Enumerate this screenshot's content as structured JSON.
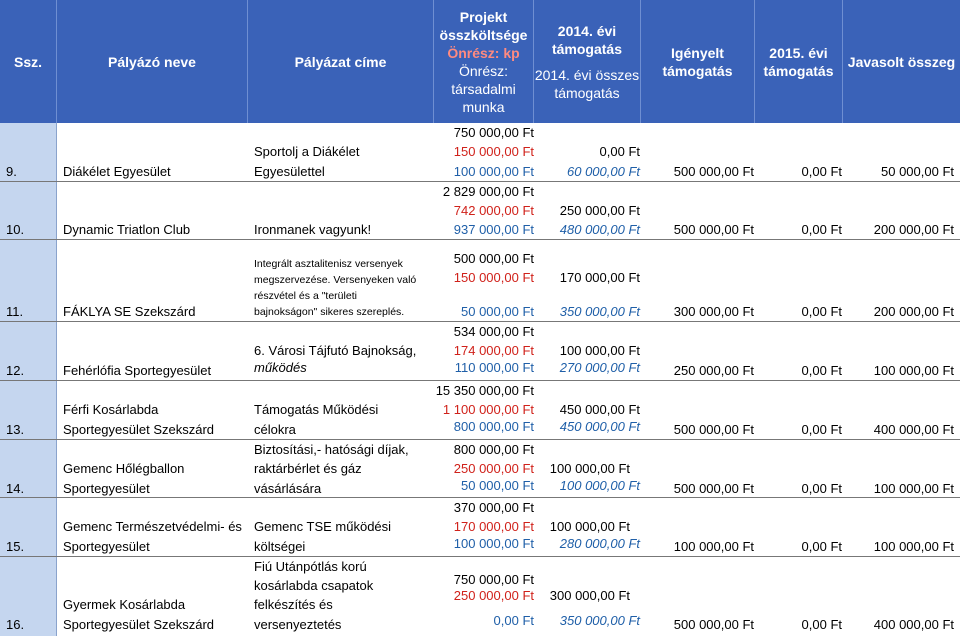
{
  "header": {
    "ssz": "Ssz.",
    "palyazo": "Pályázó neve",
    "cim": "Pályázat címe",
    "projekt_1": "Projekt",
    "projekt_2": "összköltsége",
    "projekt_onresz_kp": "Önrész: kp",
    "projekt_onresz_1": "Önrész:",
    "projekt_onresz_2": "társadalmi",
    "projekt_onresz_3": "munka",
    "t2014_1": "2014. évi",
    "t2014_2": "támogatás",
    "t2014_osszes_1": "2014. évi összes",
    "t2014_osszes_2": "támogatás",
    "igenyelt_1": "Igényelt",
    "igenyelt_2": "támogatás",
    "t2015_1": "2015. évi",
    "t2015_2": "támogatás",
    "javasolt": "Javasolt összeg"
  },
  "rows": [
    {
      "num": "9.",
      "name": [
        "Diákélet Egyesület"
      ],
      "title": [
        "Sportolj a Diákélet",
        "Egyesülettel"
      ],
      "projekt": "750 000,00 Ft",
      "onresz_kp": "150 000,00 Ft",
      "onresz_tm": "100 000,00 Ft",
      "t2014": "0,00 Ft",
      "t2014_ossz": "60 000,00 Ft",
      "igenyelt": "500 000,00 Ft",
      "t2015": "0,00 Ft",
      "javasolt": "50 000,00 Ft"
    },
    {
      "num": "10.",
      "name": [
        "Dynamic Triatlon Club"
      ],
      "title": [
        "Ironmanek vagyunk!"
      ],
      "projekt": "2 829 000,00 Ft",
      "onresz_kp": "742 000,00 Ft",
      "onresz_tm": "937 000,00 Ft",
      "t2014": "250 000,00 Ft",
      "t2014_ossz": "480 000,00 Ft",
      "igenyelt": "500 000,00 Ft",
      "t2015": "0,00 Ft",
      "javasolt": "200 000,00 Ft"
    },
    {
      "num": "11.",
      "name": [
        "FÁKLYA SE Szekszárd"
      ],
      "title": [
        "Integrált asztalitenisz versenyek",
        "megszervezése. Versenyeken való",
        "részvétel és a \"területi",
        "bajnokságon\" sikeres szereplés."
      ],
      "projekt": "500 000,00 Ft",
      "onresz_kp": "150 000,00 Ft",
      "onresz_tm": "50 000,00 Ft",
      "t2014": "170 000,00 Ft",
      "t2014_ossz": "350 000,00 Ft",
      "igenyelt": "300 000,00 Ft",
      "t2015": "0,00 Ft",
      "javasolt": "200 000,00 Ft"
    },
    {
      "num": "12.",
      "name": [
        "Fehérlófia Sportegyesület"
      ],
      "title": [
        "6. Városi Tájfutó Bajnokság,",
        "működés"
      ],
      "projekt": "534 000,00 Ft",
      "onresz_kp": "174 000,00 Ft",
      "onresz_tm": "110 000,00 Ft",
      "t2014": "100 000,00 Ft",
      "t2014_ossz": "270 000,00 Ft",
      "igenyelt": "250 000,00 Ft",
      "t2015": "0,00 Ft",
      "javasolt": "100 000,00 Ft"
    },
    {
      "num": "13.",
      "name": [
        "Férfi Kosárlabda",
        "Sportegyesület Szekszárd"
      ],
      "title": [
        "Támogatás Működési",
        "célokra"
      ],
      "projekt": "15 350 000,00 Ft",
      "onresz_kp": "1 100 000,00 Ft",
      "onresz_tm": "800 000,00 Ft",
      "t2014": "450 000,00 Ft",
      "t2014_ossz": "450 000,00 Ft",
      "igenyelt": "500 000,00 Ft",
      "t2015": "0,00 Ft",
      "javasolt": "400 000,00 Ft"
    },
    {
      "num": "14.",
      "name": [
        "Gemenc Hőlégballon",
        "Sportegyesület"
      ],
      "title": [
        "Biztosítási,- hatósági díjak,",
        "raktárbérlet és gáz",
        "vásárlására"
      ],
      "projekt": "800 000,00 Ft",
      "onresz_kp": "250 000,00 Ft",
      "onresz_tm": "50 000,00 Ft",
      "t2014": "100 000,00 Ft",
      "t2014_ossz": "100 000,00 Ft",
      "igenyelt": "500 000,00 Ft",
      "t2015": "0,00 Ft",
      "javasolt": "100 000,00 Ft"
    },
    {
      "num": "15.",
      "name": [
        "Gemenc Természetvédelmi- és",
        "Sportegyesület"
      ],
      "title": [
        "Gemenc TSE működési",
        "költségei"
      ],
      "projekt": "370 000,00 Ft",
      "onresz_kp": "170 000,00 Ft",
      "onresz_tm": "100 000,00 Ft",
      "t2014": "100 000,00 Ft",
      "t2014_ossz": "280 000,00 Ft",
      "igenyelt": "100 000,00 Ft",
      "t2015": "0,00 Ft",
      "javasolt": "100 000,00 Ft"
    },
    {
      "num": "16.",
      "name": [
        "Gyermek Kosárlabda",
        "Sportegyesület Szekszárd"
      ],
      "title": [
        "Fiú Utánpótlás korú",
        "kosárlabda csapatok",
        "felkészítés és",
        "versenyeztetés"
      ],
      "projekt": "750 000,00 Ft",
      "onresz_kp": "250 000,00 Ft",
      "onresz_tm": "0,00 Ft",
      "t2014": "300 000,00 Ft",
      "t2014_ossz": "350 000,00 Ft",
      "igenyelt": "500 000,00 Ft",
      "t2015": "0,00 Ft",
      "javasolt": "400 000,00 Ft"
    }
  ]
}
